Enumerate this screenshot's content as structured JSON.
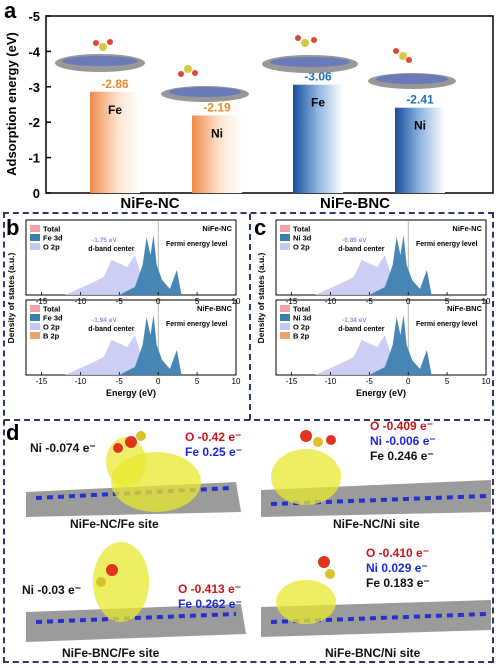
{
  "panel_a": {
    "label": "a",
    "ylabel": "Adsorption energy (eV)",
    "yticks": [
      "-5",
      "-4",
      "-3",
      "-2",
      "-1",
      "0"
    ],
    "groups": [
      "NiFe-NC",
      "NiFe-BNC"
    ],
    "bars": [
      {
        "metal": "Fe",
        "value": "-2.86",
        "group": "NiFe-NC"
      },
      {
        "metal": "Ni",
        "value": "-2.19",
        "group": "NiFe-NC"
      },
      {
        "metal": "Fe",
        "value": "-3.06",
        "group": "NiFe-BNC"
      },
      {
        "metal": "Ni",
        "value": "-2.41",
        "group": "NiFe-BNC"
      }
    ],
    "colors": {
      "nc": "#f3a06a",
      "bnc": "#1f5fa8",
      "nc_text": "#e88a2d",
      "bnc_text": "#1f6fb5"
    }
  },
  "chart_data": {
    "type": "bar",
    "categories": [
      "NiFe-NC Fe",
      "NiFe-NC Ni",
      "NiFe-BNC Fe",
      "NiFe-BNC Ni"
    ],
    "values": [
      -2.86,
      -2.19,
      -3.06,
      -2.41
    ],
    "title": "",
    "xlabel": "",
    "ylabel": "Adsorption energy (eV)",
    "ylim": [
      0,
      -5
    ]
  },
  "panel_b": {
    "label": "b",
    "ylabel": "Density of states (a.u.)",
    "xlabel": "Energy (eV)",
    "xticks": [
      "-15",
      "-10",
      "-5",
      "0",
      "5",
      "10"
    ],
    "top": {
      "title": "NiFe-NC",
      "legend": [
        "Total",
        "Fe 3d",
        "O 2p"
      ],
      "dband": "-1.75 eV",
      "dband_label": "d-band center",
      "fermi": "Fermi energy level"
    },
    "bottom": {
      "title": "NiFe-BNC",
      "legend": [
        "Total",
        "Fe 3d",
        "O 2p",
        "B 2p"
      ],
      "dband": "-1.94 eV",
      "dband_label": "d-band center",
      "fermi": "Fermi energy level"
    }
  },
  "panel_c": {
    "label": "c",
    "ylabel": "Density of states (a.u.)",
    "xlabel": "Energy (eV)",
    "xticks": [
      "-15",
      "-10",
      "-5",
      "0",
      "5",
      "10"
    ],
    "top": {
      "title": "NiFe-NC",
      "legend": [
        "Total",
        "Ni 3d",
        "O 2p"
      ],
      "dband": "-0.85 eV",
      "dband_label": "d-band center",
      "fermi": "Fermi energy level"
    },
    "bottom": {
      "title": "NiFe-BNC",
      "legend": [
        "Total",
        "Ni 3d",
        "O 2p",
        "B 2p"
      ],
      "dband": "-1.34 eV",
      "dband_label": "d-band center",
      "fermi": "Fermi energy level"
    }
  },
  "panel_d": {
    "label": "d",
    "q1": {
      "ni": "Ni -0.074 e⁻",
      "o": "O -0.42 e⁻",
      "fe": "Fe 0.25 e⁻",
      "caption": "NiFe-NC/Fe site"
    },
    "q2": {
      "o": "O -0.409 e⁻",
      "ni": "Ni -0.006 e⁻",
      "fe": "Fe 0.246 e⁻",
      "caption": "NiFe-NC/Ni site"
    },
    "q3": {
      "ni": "Ni -0.03 e⁻",
      "o": "O -0.413 e⁻",
      "fe": "Fe 0.262 e⁻",
      "caption": "NiFe-BNC/Fe site"
    },
    "q4": {
      "o": "O -0.410 e⁻",
      "ni": "Ni  0.029 e⁻",
      "fe": "Fe 0.183 e⁻",
      "caption": "NiFe-BNC/Ni site"
    }
  }
}
